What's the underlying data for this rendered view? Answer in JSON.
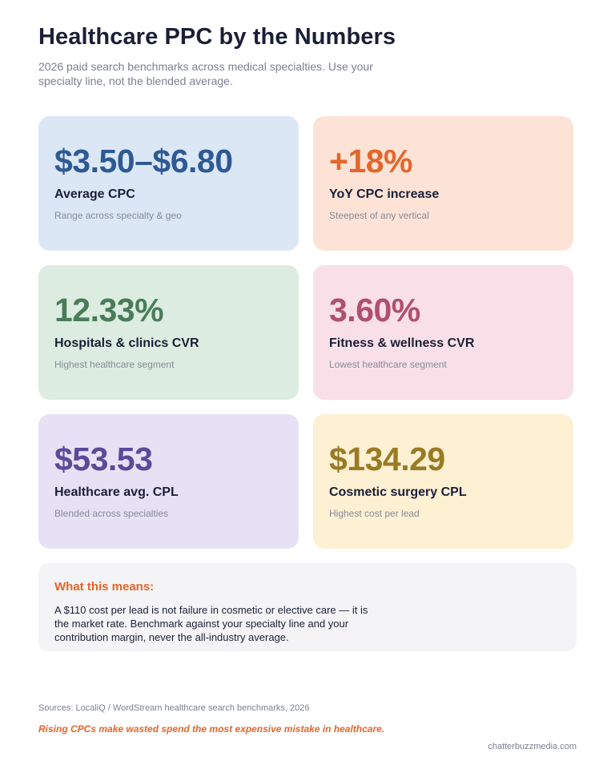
{
  "header": {
    "title": "Healthcare PPC by the Numbers",
    "subtitle": "2026 paid search benchmarks across medical specialties. Use your specialty line, not the blended average."
  },
  "cards": [
    {
      "value": "$3.50–$6.80",
      "label": "Average CPC",
      "note": "Range across specialty & geo",
      "accent": "#2e5a94",
      "background": "#dce7f6"
    },
    {
      "value": "+18%",
      "label": "YoY CPC increase",
      "note": "Steepest of any vertical",
      "accent": "#e4662b",
      "background": "#fde3d6"
    },
    {
      "value": "12.33%",
      "label": "Hospitals & clinics CVR",
      "note": "Highest healthcare segment",
      "accent": "#4a7c59",
      "background": "#dcece0"
    },
    {
      "value": "3.60%",
      "label": "Fitness & wellness CVR",
      "note": "Lowest healthcare segment",
      "accent": "#b0506e",
      "background": "#f9e0e8"
    },
    {
      "value": "$53.53",
      "label": "Healthcare avg. CPL",
      "note": "Blended across specialties",
      "accent": "#5a4a98",
      "background": "#e7e1f6"
    },
    {
      "value": "$134.29",
      "label": "Cosmetic surgery CPL",
      "note": "Highest cost per lead",
      "accent": "#9a7a22",
      "background": "#fdf0d3"
    }
  ],
  "means": {
    "heading": "What this means:",
    "body": "A $110 cost per lead is not failure in cosmetic or elective care — it is the market rate. Benchmark against your specialty line and your contribution margin, never the all-industry average."
  },
  "footer": {
    "sources": "Sources: LocaliQ / WordStream healthcare search benchmarks, 2026",
    "tagline": "Rising CPCs make wasted spend the most expensive mistake in healthcare.",
    "site": "chatterbuzzmedia.com"
  }
}
